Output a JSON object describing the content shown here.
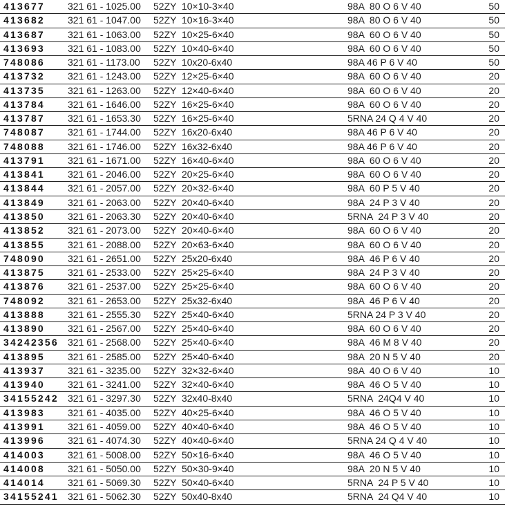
{
  "colors": {
    "background": "#ffffff",
    "text": "#1e1e1e",
    "part_number_text": "#111111",
    "row_line": "#222222"
  },
  "table": {
    "rows": [
      {
        "part": "413677",
        "order": "321 61 - 1025.00",
        "code": "52ZY  10×10-3×40",
        "spec": "98A  80 O 6 V 40",
        "qty": "50"
      },
      {
        "part": "413682",
        "order": "321 61 - 1047.00",
        "code": "52ZY  10×16-3×40",
        "spec": "98A  80 O 6 V 40",
        "qty": "50"
      },
      {
        "part": "413687",
        "order": "321 61 - 1063.00",
        "code": "52ZY  10×25-6×40",
        "spec": "98A  60 O 6 V 40",
        "qty": "50"
      },
      {
        "part": "413693",
        "order": "321 61 - 1083.00",
        "code": "52ZY  10×40-6×40",
        "spec": "98A  60 O 6 V 40",
        "qty": "50"
      },
      {
        "part": "748086",
        "order": "321 61 - 1173.00",
        "code": "52ZY  10x20-6x40",
        "spec": "98A 46 P 6 V 40",
        "qty": "50"
      },
      {
        "part": "413732",
        "order": "321 61 - 1243.00",
        "code": "52ZY  12×25-6×40",
        "spec": "98A  60 O 6 V 40",
        "qty": "20"
      },
      {
        "part": "413735",
        "order": "321 61 - 1263.00",
        "code": "52ZY  12×40-6×40",
        "spec": "98A  60 O 6 V 40",
        "qty": "20"
      },
      {
        "part": "413784",
        "order": "321 61 - 1646.00",
        "code": "52ZY  16×25-6×40",
        "spec": "98A  60 O 6 V 40",
        "qty": "20"
      },
      {
        "part": "413787",
        "order": "321 61 - 1653.30",
        "code": "52ZY  16×25-6×40",
        "spec": "5RNA 24 Q 4 V 40",
        "qty": "20"
      },
      {
        "part": "748087",
        "order": "321 61 - 1744.00",
        "code": "52ZY  16x20-6x40",
        "spec": "98A 46 P 6 V 40",
        "qty": "20"
      },
      {
        "part": "748088",
        "order": "321 61 - 1746.00",
        "code": "52ZY  16x32-6x40",
        "spec": "98A 46 P 6 V 40",
        "qty": "20"
      },
      {
        "part": "413791",
        "order": "321 61 - 1671.00",
        "code": "52ZY  16×40-6×40",
        "spec": "98A  60 O 6 V 40",
        "qty": "20"
      },
      {
        "part": "413841",
        "order": "321 61 - 2046.00",
        "code": "52ZY  20×25-6×40",
        "spec": "98A  60 O 6 V 40",
        "qty": "20"
      },
      {
        "part": "413844",
        "order": "321 61 - 2057.00",
        "code": "52ZY  20×32-6×40",
        "spec": "98A  60 P 5 V 40",
        "qty": "20"
      },
      {
        "part": "413849",
        "order": "321 61 - 2063.00",
        "code": "52ZY  20×40-6×40",
        "spec": "98A  24 P 3 V 40",
        "qty": "20"
      },
      {
        "part": "413850",
        "order": "321 61 - 2063.30",
        "code": "52ZY  20×40-6×40",
        "spec": "5RNA  24 P 3 V 40",
        "qty": "20"
      },
      {
        "part": "413852",
        "order": "321 61 - 2073.00",
        "code": "52ZY  20×40-6×40",
        "spec": "98A  60 O 6 V 40",
        "qty": "20"
      },
      {
        "part": "413855",
        "order": "321 61 - 2088.00",
        "code": "52ZY  20×63-6×40",
        "spec": "98A  60 O 6 V 40",
        "qty": "20"
      },
      {
        "part": "748090",
        "order": "321 61 - 2651.00",
        "code": "52ZY  25x20-6x40",
        "spec": "98A  46 P 6 V 40",
        "qty": "20"
      },
      {
        "part": "413875",
        "order": "321 61 - 2533.00",
        "code": "52ZY  25×25-6×40",
        "spec": "98A  24 P 3 V 40",
        "qty": "20"
      },
      {
        "part": "413876",
        "order": "321 61 - 2537.00",
        "code": "52ZY  25×25-6×40",
        "spec": "98A  60 O 6 V 40",
        "qty": "20"
      },
      {
        "part": "748092",
        "order": "321 61 - 2653.00",
        "code": "52ZY  25x32-6x40",
        "spec": "98A  46 P 6 V 40",
        "qty": "20"
      },
      {
        "part": "413888",
        "order": "321 61 - 2555.30",
        "code": "52ZY  25×40-6×40",
        "spec": "5RNA 24 P 3 V 40",
        "qty": "20"
      },
      {
        "part": "413890",
        "order": "321 61 - 2567.00",
        "code": "52ZY  25×40-6×40",
        "spec": "98A  60 O 6 V 40",
        "qty": "20"
      },
      {
        "part": "34242356",
        "order": "321 61 - 2568.00",
        "code": "52ZY  25×40-6×40",
        "spec": "98A  46 M 8 V 40",
        "qty": "20"
      },
      {
        "part": "413895",
        "order": "321 61 - 2585.00",
        "code": "52ZY  25×40-6×40",
        "spec": "98A  20 N 5 V 40",
        "qty": "20"
      },
      {
        "part": "413937",
        "order": "321 61 - 3235.00",
        "code": "52ZY  32×32-6×40",
        "spec": "98A  40 O 6 V 40",
        "qty": "10"
      },
      {
        "part": "413940",
        "order": "321 61 - 3241.00",
        "code": "52ZY  32×40-6×40",
        "spec": "98A  46 O 5 V 40",
        "qty": "10"
      },
      {
        "part": "34155242",
        "order": "321 61 - 3297.30",
        "code": "52ZY  32x40-8x40",
        "spec": "5RNA  24Q4 V 40",
        "qty": "10"
      },
      {
        "part": "413983",
        "order": "321 61 - 4035.00",
        "code": "52ZY  40×25-6×40",
        "spec": "98A  46 O 5 V 40",
        "qty": "10"
      },
      {
        "part": "413991",
        "order": "321 61 - 4059.00",
        "code": "52ZY  40×40-6×40",
        "spec": "98A  46 O 5 V 40",
        "qty": "10"
      },
      {
        "part": "413996",
        "order": "321 61 - 4074.30",
        "code": "52ZY  40×40-6×40",
        "spec": "5RNA 24 Q 4 V 40",
        "qty": "10"
      },
      {
        "part": "414003",
        "order": "321 61 - 5008.00",
        "code": "52ZY  50×16-6×40",
        "spec": "98A  46 O 5 V 40",
        "qty": "10"
      },
      {
        "part": "414008",
        "order": "321 61 - 5050.00",
        "code": "52ZY  50×30-9×40",
        "spec": "98A  20 N 5 V 40",
        "qty": "10"
      },
      {
        "part": "414014",
        "order": "321 61 - 5069.30",
        "code": "52ZY  50×40-6×40",
        "spec": "5RNA  24 P 5 V 40",
        "qty": "10"
      },
      {
        "part": "34155241",
        "order": "321 61 - 5062.30",
        "code": "52ZY  50x40-8x40",
        "spec": "5RNA  24 Q4 V 40",
        "qty": "10"
      }
    ]
  }
}
